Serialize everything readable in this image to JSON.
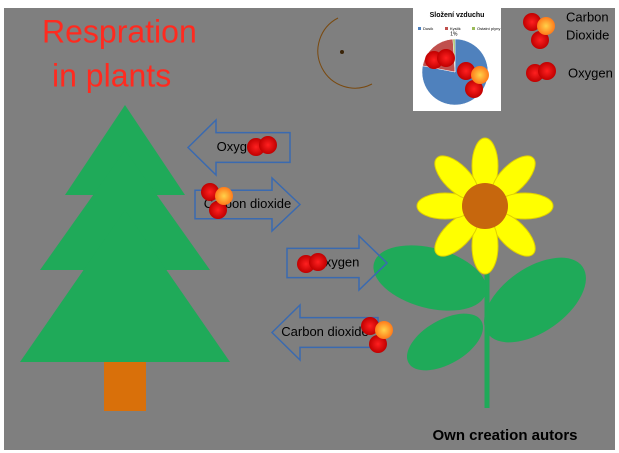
{
  "title": {
    "line1": "Respration",
    "line2": "in plants"
  },
  "legend": {
    "carbon_dioxide": {
      "line1": "Carbon",
      "line2": "Dioxide"
    },
    "oxygen": "Oxygen"
  },
  "arrows": [
    {
      "label": "Oxygen",
      "direction": "left"
    },
    {
      "label": "Carbon dioxide",
      "direction": "right"
    },
    {
      "label": "Oxygen",
      "direction": "right"
    },
    {
      "label": "Carbon dioxide",
      "direction": "left"
    }
  ],
  "inset_chart": {
    "type": "pie",
    "title": "Složení vzduchu",
    "categories": [
      "Dusík",
      "Kyslík",
      "Ostatní plyny"
    ],
    "values": [
      78,
      21,
      1
    ],
    "value_labels": [
      null,
      null,
      "1%"
    ],
    "colors": [
      "#4f81bd",
      "#c0504d",
      "#9bbb59"
    ]
  },
  "footer": "Own creation autors"
}
